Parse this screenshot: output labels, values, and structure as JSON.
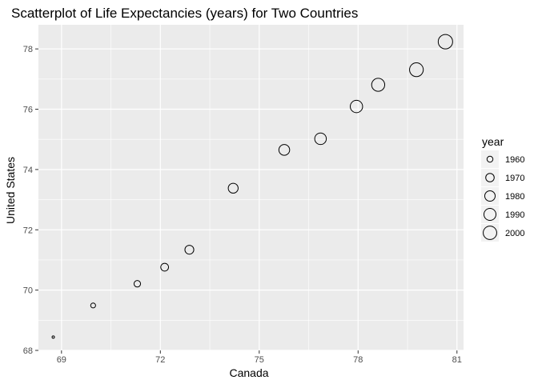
{
  "chart_data": {
    "type": "scatter",
    "title": "Scatterplot of Life Expectancies (years) for Two Countries",
    "xlabel": "Canada",
    "ylabel": "United States",
    "xlim": [
      68.3,
      81.2
    ],
    "ylim": [
      68.0,
      78.8
    ],
    "x_ticks": [
      69,
      72,
      75,
      78,
      81
    ],
    "y_ticks": [
      68,
      70,
      72,
      74,
      76,
      78
    ],
    "grid": true,
    "size_variable": "year",
    "points": [
      {
        "year": 1952,
        "x": 68.75,
        "y": 68.44
      },
      {
        "year": 1957,
        "x": 69.96,
        "y": 69.49
      },
      {
        "year": 1962,
        "x": 71.3,
        "y": 70.21
      },
      {
        "year": 1967,
        "x": 72.13,
        "y": 70.76
      },
      {
        "year": 1972,
        "x": 72.88,
        "y": 71.34
      },
      {
        "year": 1977,
        "x": 74.21,
        "y": 73.38
      },
      {
        "year": 1982,
        "x": 75.76,
        "y": 74.65
      },
      {
        "year": 1987,
        "x": 76.86,
        "y": 75.02
      },
      {
        "year": 1992,
        "x": 77.95,
        "y": 76.09
      },
      {
        "year": 1997,
        "x": 78.61,
        "y": 76.81
      },
      {
        "year": 2002,
        "x": 79.77,
        "y": 77.31
      },
      {
        "year": 2007,
        "x": 80.65,
        "y": 78.24
      }
    ],
    "legend": {
      "title": "year",
      "entries": [
        "1960",
        "1970",
        "1980",
        "1990",
        "2000"
      ],
      "placement": "right"
    },
    "colors": {
      "panel": "#ebebeb",
      "grid_major": "#ffffff",
      "point_stroke": "#000000"
    }
  }
}
